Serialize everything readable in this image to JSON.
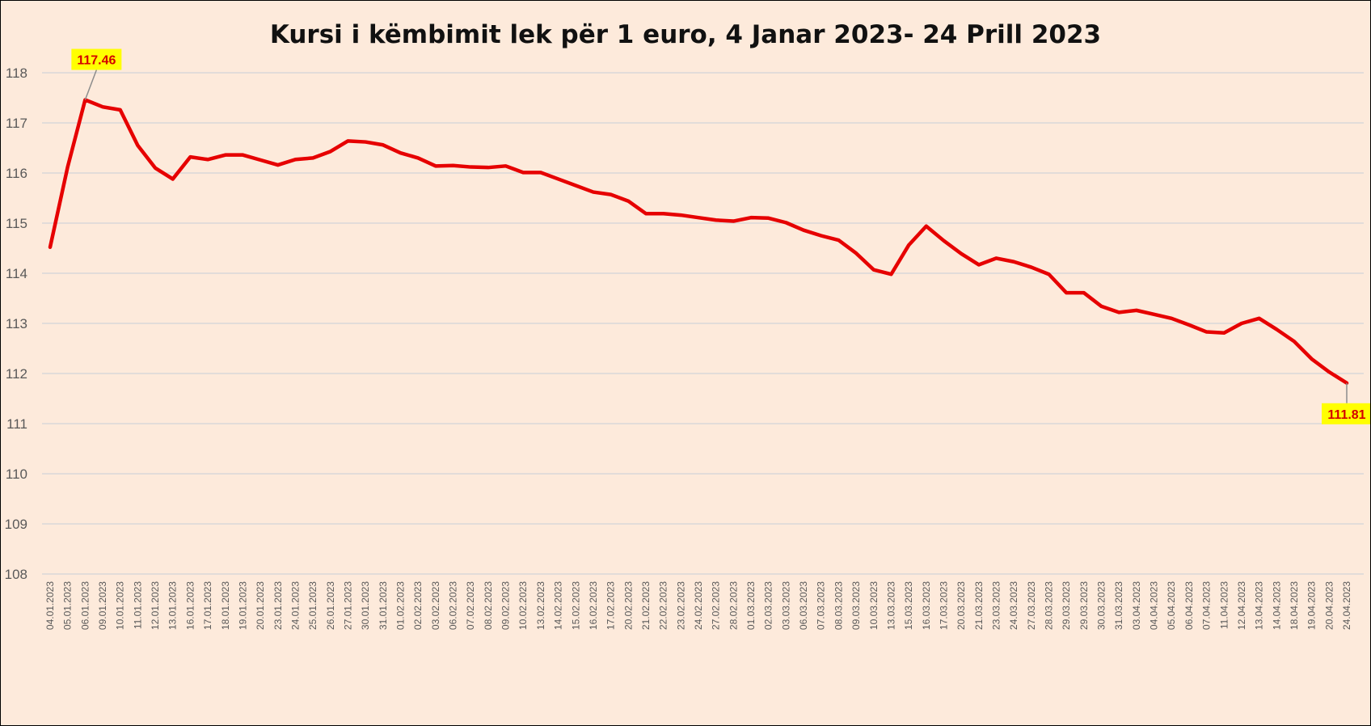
{
  "chart_data": {
    "type": "line",
    "title": "Kursi i këmbimit lek për 1 euro, 4 Janar 2023- 24 Prill 2023",
    "xlabel": "",
    "ylabel": "",
    "ylim": [
      108,
      118
    ],
    "yticks": [
      "108",
      "109",
      "110",
      "111",
      "112",
      "113",
      "114",
      "115",
      "116",
      "117",
      "118"
    ],
    "grid": true,
    "legend": "none",
    "line_color": "#e60000",
    "categories": [
      "04.01.2023",
      "05.01.2023",
      "06.01.2023",
      "09.01.2023",
      "10.01.2023",
      "11.01.2023",
      "12.01.2023",
      "13.01.2023",
      "16.01.2023",
      "17.01.2023",
      "18.01.2023",
      "19.01.2023",
      "20.01.2023",
      "23.01.2023",
      "24.01.2023",
      "25.01.2023",
      "26.01.2023",
      "27.01.2023",
      "30.01.2023",
      "31.01.2023",
      "01.02.2023",
      "02.02.2023",
      "03.02.2023",
      "06.02.2023",
      "07.02.2023",
      "08.02.2023",
      "09.02.2023",
      "10.02.2023",
      "13.02.2023",
      "14.02.2023",
      "15.02.2023",
      "16.02.2023",
      "17.02.2023",
      "20.02.2023",
      "21.02.2023",
      "22.02.2023",
      "23.02.2023",
      "24.02.2023",
      "27.02.2023",
      "28.02.2023",
      "01.03.2023",
      "02.03.2023",
      "03.03.2023",
      "06.03.2023",
      "07.03.2023",
      "08.03.2023",
      "09.03.2023",
      "10.03.2023",
      "13.03.2023",
      "15.03.2023",
      "16.03.2023",
      "17.03.2023",
      "20.03.2023",
      "21.03.2023",
      "23.03.2023",
      "24.03.2023",
      "27.03.2023",
      "28.03.2023",
      "29.03.2023",
      "29.03.2023",
      "30.03.2023",
      "31.03.2023",
      "03.04.2023",
      "04.04.2023",
      "05.04.2023",
      "06.04.2023",
      "07.04.2023",
      "11.04.2023",
      "12.04.2023",
      "13.04.2023",
      "14.04.2023",
      "18.04.2023",
      "19.04.2023",
      "20.04.2023",
      "24.04.2023"
    ],
    "series": [
      {
        "values": [
          114.52,
          116.12,
          117.46,
          117.32,
          117.26,
          116.55,
          116.1,
          115.88,
          116.32,
          116.27,
          116.36,
          116.36,
          116.26,
          116.16,
          116.27,
          116.3,
          116.43,
          116.64,
          116.62,
          116.56,
          116.4,
          116.3,
          116.14,
          116.15,
          116.12,
          116.11,
          116.14,
          116.01,
          116.01,
          115.88,
          115.75,
          115.62,
          115.57,
          115.44,
          115.19,
          115.19,
          115.16,
          115.11,
          115.06,
          115.04,
          115.11,
          115.1,
          115.01,
          114.86,
          114.75,
          114.66,
          114.4,
          114.07,
          113.98,
          114.56,
          114.94,
          114.65,
          114.39,
          114.17,
          114.3,
          114.23,
          114.12,
          113.98,
          113.61,
          113.61,
          113.34,
          113.22,
          113.26,
          113.18,
          113.1,
          112.97,
          112.83,
          112.81,
          113.0,
          113.1,
          112.88,
          112.64,
          112.29,
          112.03,
          111.81
        ],
        "data_labels": [
          {
            "index": 2,
            "text": "117.46"
          },
          {
            "index": 74,
            "text": "111.81"
          }
        ]
      }
    ]
  }
}
